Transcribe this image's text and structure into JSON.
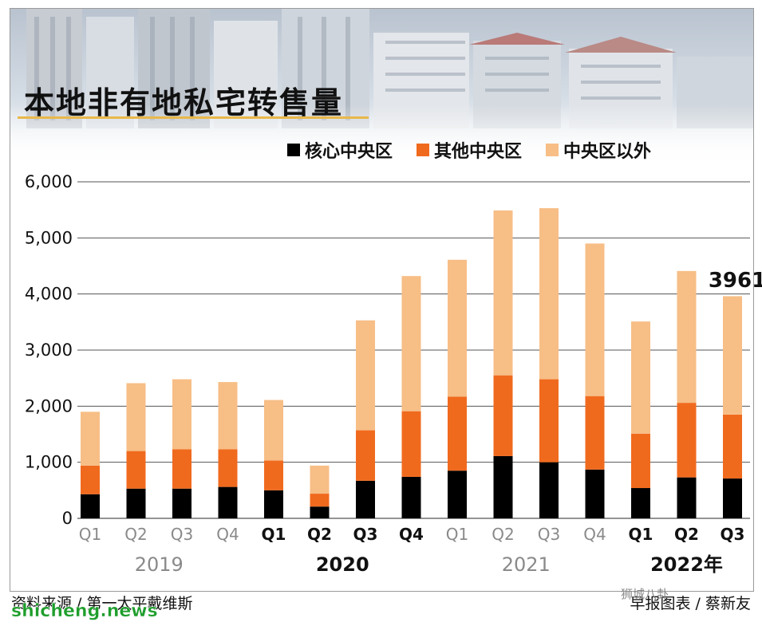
{
  "header": {
    "title": "本地非有地私宅转售量"
  },
  "legend": [
    {
      "label": "核心中央区",
      "color": "#000000"
    },
    {
      "label": "其他中央区",
      "color": "#f06a1e"
    },
    {
      "label": "中央区以外",
      "color": "#f7be86"
    }
  ],
  "footer": {
    "source": "资料来源 / 第一太平戴维斯",
    "credit": "早报图表 / 蔡新友",
    "watermark": "shicheng.news",
    "wechat": "狮城八卦"
  },
  "chart_data": {
    "type": "bar",
    "stacked": true,
    "title": "本地非有地私宅转售量",
    "categories": [
      "Q1",
      "Q2",
      "Q3",
      "Q4",
      "Q1",
      "Q2",
      "Q3",
      "Q4",
      "Q1",
      "Q2",
      "Q3",
      "Q4",
      "Q1",
      "Q2",
      "Q3"
    ],
    "year_groups": [
      {
        "label": "2019",
        "start": 0,
        "end": 3,
        "bold": false
      },
      {
        "label": "2020",
        "start": 4,
        "end": 7,
        "bold": true
      },
      {
        "label": "2021",
        "start": 8,
        "end": 11,
        "bold": false
      },
      {
        "label": "2022年",
        "start": 12,
        "end": 14,
        "bold": true
      }
    ],
    "category_bold": [
      false,
      false,
      false,
      false,
      true,
      true,
      true,
      true,
      false,
      false,
      false,
      false,
      true,
      true,
      true
    ],
    "series": [
      {
        "name": "核心中央区",
        "color": "#000000",
        "values": [
          430,
          530,
          530,
          560,
          500,
          210,
          670,
          740,
          850,
          1110,
          1000,
          870,
          540,
          730,
          710
        ]
      },
      {
        "name": "其他中央区",
        "color": "#f06a1e",
        "values": [
          510,
          670,
          700,
          670,
          530,
          230,
          900,
          1170,
          1320,
          1440,
          1480,
          1310,
          970,
          1330,
          1140
        ]
      },
      {
        "name": "中央区以外",
        "color": "#f7be86",
        "values": [
          960,
          1210,
          1250,
          1200,
          1080,
          500,
          1960,
          2410,
          2440,
          2940,
          3050,
          2720,
          2000,
          2350,
          2111
        ]
      }
    ],
    "ylim": [
      0,
      6000
    ],
    "yticks": [
      0,
      1000,
      2000,
      3000,
      4000,
      5000,
      6000
    ],
    "ytick_labels": [
      "0",
      "1,000",
      "2,000",
      "3,000",
      "4,000",
      "5,000",
      "6,000"
    ],
    "grid": true,
    "annotations": [
      {
        "category_index": 14,
        "text": "3961"
      }
    ],
    "legend_position": "top-right"
  }
}
